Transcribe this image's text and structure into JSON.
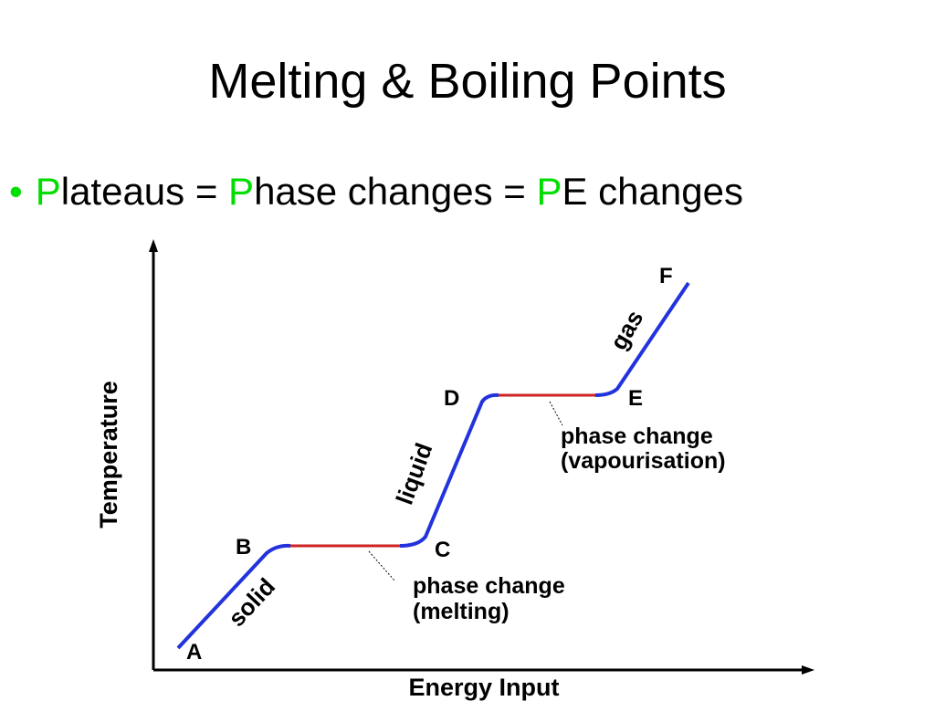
{
  "slide": {
    "title": "Melting & Boiling Points",
    "bullet": {
      "bullet_char": "•",
      "parts": [
        {
          "text": "P",
          "color": "#00dd00"
        },
        {
          "text": "lateaus = ",
          "color": "#000000"
        },
        {
          "text": "P",
          "color": "#00dd00"
        },
        {
          "text": "hase changes = ",
          "color": "#000000"
        },
        {
          "text": "P",
          "color": "#00dd00"
        },
        {
          "text": "E changes",
          "color": "#000000"
        }
      ]
    }
  },
  "diagram": {
    "axes": {
      "y_label": "Temperature",
      "x_label": "Energy Input"
    },
    "points": {
      "A": "A",
      "B": "B",
      "C": "C",
      "D": "D",
      "E": "E",
      "F": "F"
    },
    "segment_labels": {
      "solid": "solid",
      "liquid": "liquid",
      "gas": "gas"
    },
    "annotations": {
      "melting_line1": "phase change",
      "melting_line2": "(melting)",
      "vapour_line1": "phase change",
      "vapour_line2": "(vapourisation)"
    },
    "colors": {
      "slope": "#2233dd",
      "plateau": "#cc2222"
    }
  }
}
